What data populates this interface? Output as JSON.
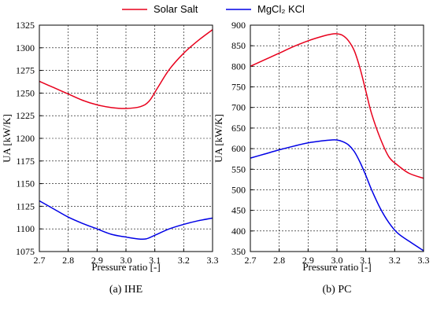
{
  "legend": {
    "placement": "top-center",
    "items": [
      {
        "label": "Solar Salt",
        "color": "#e8001c"
      },
      {
        "label": "MgCl₂ KCl",
        "color": "#0000e6"
      }
    ]
  },
  "chart_data": [
    {
      "type": "line",
      "caption": "(a) IHE",
      "xlabel": "Pressure ratio [-]",
      "ylabel": "UA  [kW/K]",
      "xlim": [
        2.7,
        3.3
      ],
      "ylim": [
        1075,
        1325
      ],
      "xticks": [
        "2.7",
        "2.8",
        "2.9",
        "3.0",
        "3.1",
        "3.2",
        "3.3"
      ],
      "yticks": [
        "1075",
        "1100",
        "1125",
        "1150",
        "1175",
        "1200",
        "1225",
        "1250",
        "1275",
        "1300",
        "1325"
      ],
      "grid": true,
      "series": [
        {
          "name": "Solar Salt",
          "color": "#e8001c",
          "x": [
            2.7,
            2.75,
            2.8,
            2.85,
            2.9,
            2.95,
            3.0,
            3.05,
            3.08,
            3.11,
            3.15,
            3.2,
            3.25,
            3.3
          ],
          "y": [
            1263,
            1256,
            1249,
            1242,
            1237,
            1234,
            1233,
            1235,
            1241,
            1256,
            1276,
            1294,
            1308,
            1320
          ]
        },
        {
          "name": "MgCl₂ KCl",
          "color": "#0000e6",
          "x": [
            2.7,
            2.75,
            2.8,
            2.85,
            2.9,
            2.95,
            3.0,
            3.04,
            3.07,
            3.1,
            3.15,
            3.2,
            3.25,
            3.3
          ],
          "y": [
            1131,
            1122,
            1113,
            1106,
            1100,
            1094,
            1091,
            1089,
            1089,
            1093,
            1100,
            1105,
            1109,
            1112
          ]
        }
      ]
    },
    {
      "type": "line",
      "caption": "(b) PC",
      "xlabel": "Pressure ratio [-]",
      "ylabel": "UA  [kW/K]",
      "xlim": [
        2.7,
        3.3
      ],
      "ylim": [
        350,
        900
      ],
      "xticks": [
        "2.7",
        "2.8",
        "2.9",
        "3.0",
        "3.1",
        "3.2",
        "3.3"
      ],
      "yticks": [
        "350",
        "400",
        "450",
        "500",
        "550",
        "600",
        "650",
        "700",
        "750",
        "800",
        "850",
        "900"
      ],
      "grid": true,
      "series": [
        {
          "name": "Solar Salt",
          "color": "#e8001c",
          "x": [
            2.7,
            2.75,
            2.8,
            2.85,
            2.9,
            2.95,
            2.98,
            3.0,
            3.02,
            3.04,
            3.06,
            3.08,
            3.1,
            3.12,
            3.15,
            3.18,
            3.21,
            3.25,
            3.3
          ],
          "y": [
            800,
            816,
            832,
            848,
            862,
            873,
            878,
            879,
            875,
            862,
            838,
            795,
            740,
            685,
            625,
            580,
            560,
            540,
            528
          ]
        },
        {
          "name": "MgCl₂ KCl",
          "color": "#0000e6",
          "x": [
            2.7,
            2.75,
            2.8,
            2.85,
            2.9,
            2.95,
            2.98,
            3.0,
            3.02,
            3.04,
            3.06,
            3.08,
            3.1,
            3.12,
            3.15,
            3.18,
            3.21,
            3.25,
            3.3
          ],
          "y": [
            577,
            587,
            597,
            606,
            614,
            619,
            621,
            621,
            617,
            609,
            593,
            567,
            535,
            500,
            455,
            420,
            395,
            375,
            352
          ]
        }
      ]
    }
  ]
}
